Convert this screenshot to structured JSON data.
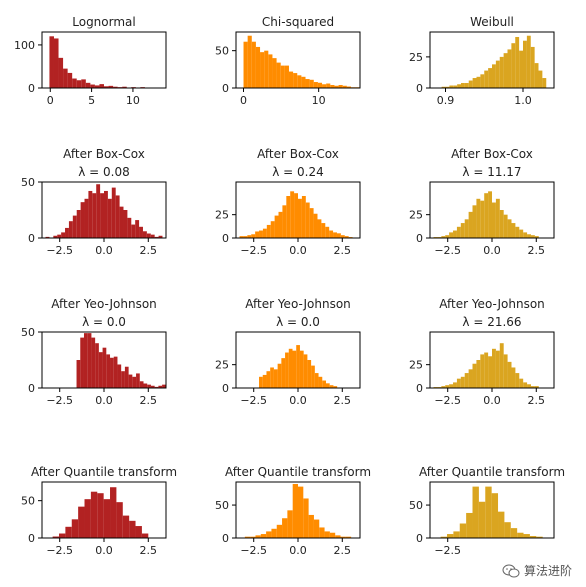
{
  "colors": {
    "lognormal": "#b22222",
    "chisq": "#ff8c00",
    "weibull": "#daa520"
  },
  "watermark": "算法进阶",
  "chart_data": [
    {
      "type": "histogram",
      "title": [
        "Lognormal"
      ],
      "color": "#b22222",
      "xlim": [
        -1,
        14
      ],
      "ylim": [
        0,
        130
      ],
      "xticks": [
        0,
        5,
        10
      ],
      "xtick_labels": [
        "0",
        "5",
        "10"
      ],
      "yticks": [
        0,
        100
      ],
      "ytick_labels": [
        "0",
        "100"
      ],
      "bin_start": -0.1,
      "bin_width": 0.55,
      "counts": [
        120,
        115,
        70,
        45,
        35,
        22,
        18,
        20,
        12,
        8,
        6,
        9,
        4,
        5,
        3,
        2,
        3,
        1,
        2,
        1,
        2,
        0,
        1,
        0,
        1
      ]
    },
    {
      "type": "histogram",
      "title": [
        "Chi-squared"
      ],
      "color": "#ff8c00",
      "xlim": [
        -1,
        15.5
      ],
      "ylim": [
        0,
        75
      ],
      "xticks": [
        0,
        10
      ],
      "xtick_labels": [
        "0",
        "10"
      ],
      "yticks": [
        0,
        50
      ],
      "ytick_labels": [
        "0",
        "50"
      ],
      "bin_start": 0,
      "bin_width": 0.55,
      "counts": [
        62,
        70,
        62,
        55,
        48,
        50,
        45,
        40,
        34,
        30,
        30,
        22,
        20,
        17,
        15,
        12,
        11,
        8,
        7,
        5,
        6,
        4,
        3,
        4,
        3,
        2,
        1,
        1
      ]
    },
    {
      "type": "histogram",
      "title": [
        "Weibull"
      ],
      "color": "#daa520",
      "xlim": [
        0.88,
        1.04
      ],
      "ylim": [
        0,
        45
      ],
      "xticks": [
        0.9,
        1.0
      ],
      "xtick_labels": [
        "0.9",
        "1.0"
      ],
      "yticks": [
        0,
        25
      ],
      "ytick_labels": [
        "0",
        "25"
      ],
      "bin_start": 0.895,
      "bin_width": 0.005,
      "counts": [
        1,
        1,
        2,
        2,
        3,
        4,
        4,
        6,
        8,
        9,
        11,
        14,
        16,
        19,
        22,
        25,
        28,
        31,
        36,
        41,
        30,
        38,
        42,
        33,
        20,
        14,
        8
      ]
    },
    {
      "type": "histogram",
      "title": [
        "After Box-Cox",
        "λ = 0.08"
      ],
      "color": "#b22222",
      "xlim": [
        -3.5,
        3.5
      ],
      "ylim": [
        0,
        50
      ],
      "xticks": [
        -2.5,
        0,
        2.5
      ],
      "xtick_labels": [
        "−2.5",
        "0.0",
        "2.5"
      ],
      "yticks": [
        0,
        50
      ],
      "ytick_labels": [
        "0",
        "50"
      ],
      "bin_start": -3.3,
      "bin_width": 0.22,
      "counts": [
        1,
        0,
        2,
        3,
        5,
        9,
        15,
        20,
        25,
        32,
        35,
        42,
        40,
        48,
        40,
        42,
        35,
        45,
        38,
        28,
        25,
        18,
        12,
        16,
        10,
        6,
        4,
        3,
        1,
        2
      ]
    },
    {
      "type": "histogram",
      "title": [
        "After Box-Cox",
        "λ = 0.24"
      ],
      "color": "#ff8c00",
      "xlim": [
        -3.5,
        3.5
      ],
      "ylim": [
        0,
        60
      ],
      "xticks": [
        -2.5,
        0,
        2.5
      ],
      "xtick_labels": [
        "−2.5",
        "0.0",
        "2.5"
      ],
      "yticks": [
        0,
        25
      ],
      "ytick_labels": [
        "0",
        "25"
      ],
      "bin_start": -3.3,
      "bin_width": 0.22,
      "counts": [
        2,
        2,
        3,
        4,
        7,
        8,
        10,
        14,
        18,
        24,
        28,
        35,
        45,
        50,
        48,
        42,
        45,
        38,
        32,
        26,
        20,
        16,
        12,
        8,
        6,
        5,
        3,
        2,
        1
      ]
    },
    {
      "type": "histogram",
      "title": [
        "After Box-Cox",
        "λ = 11.17"
      ],
      "color": "#daa520",
      "xlim": [
        -3.5,
        3.5
      ],
      "ylim": [
        0,
        60
      ],
      "xticks": [
        -2.5,
        0,
        2.5
      ],
      "xtick_labels": [
        "−2.5",
        "0.0",
        "2.5"
      ],
      "yticks": [
        0,
        25
      ],
      "ytick_labels": [
        "0",
        "25"
      ],
      "bin_start": -3.3,
      "bin_width": 0.22,
      "counts": [
        1,
        1,
        2,
        3,
        6,
        8,
        12,
        16,
        20,
        28,
        35,
        42,
        40,
        48,
        50,
        38,
        42,
        30,
        25,
        20,
        16,
        12,
        9,
        6,
        4,
        3,
        2
      ]
    },
    {
      "type": "histogram",
      "title": [
        "After Yeo-Johnson",
        "λ = 0.0"
      ],
      "color": "#b22222",
      "xlim": [
        -3.5,
        3.5
      ],
      "ylim": [
        0,
        50
      ],
      "xticks": [
        -2.5,
        0,
        2.5
      ],
      "xtick_labels": [
        "−2.5",
        "0.0",
        "2.5"
      ],
      "yticks": [
        0,
        50
      ],
      "ytick_labels": [
        "0",
        "50"
      ],
      "bin_start": -1.55,
      "bin_width": 0.21,
      "counts": [
        25,
        45,
        49,
        49,
        45,
        40,
        32,
        36,
        30,
        27,
        28,
        21,
        15,
        19,
        12,
        10,
        13,
        6,
        4,
        3,
        2,
        1,
        2,
        3
      ]
    },
    {
      "type": "histogram",
      "title": [
        "After Yeo-Johnson",
        "λ = 0.0"
      ],
      "color": "#ff8c00",
      "xlim": [
        -3.5,
        3.5
      ],
      "ylim": [
        0,
        60
      ],
      "xticks": [
        -2.5,
        0,
        2.5
      ],
      "xtick_labels": [
        "−2.5",
        "0.0",
        "2.5"
      ],
      "yticks": [
        0,
        25
      ],
      "ytick_labels": [
        "0",
        "25"
      ],
      "bin_start": -2.2,
      "bin_width": 0.21,
      "counts": [
        12,
        14,
        18,
        22,
        20,
        26,
        32,
        38,
        42,
        40,
        46,
        40,
        36,
        30,
        24,
        16,
        12,
        8,
        5,
        3,
        2
      ]
    },
    {
      "type": "histogram",
      "title": [
        "After Yeo-Johnson",
        "λ = 21.66"
      ],
      "color": "#daa520",
      "xlim": [
        -3.5,
        3.5
      ],
      "ylim": [
        0,
        60
      ],
      "xticks": [
        -2.5,
        0,
        2.5
      ],
      "xtick_labels": [
        "−2.5",
        "0.0",
        "2.5"
      ],
      "yticks": [
        0,
        25
      ],
      "ytick_labels": [
        "0",
        "25"
      ],
      "bin_start": -3.3,
      "bin_width": 0.22,
      "counts": [
        1,
        1,
        2,
        3,
        4,
        6,
        10,
        12,
        16,
        20,
        26,
        30,
        36,
        38,
        34,
        42,
        40,
        48,
        36,
        28,
        22,
        16,
        10,
        6,
        4,
        2,
        2
      ]
    },
    {
      "type": "histogram",
      "title": [
        "After Quantile transform"
      ],
      "color": "#b22222",
      "xlim": [
        -3.5,
        3.5
      ],
      "ylim": [
        0,
        75
      ],
      "xticks": [
        -2.5,
        0,
        2.5
      ],
      "xtick_labels": [
        "−2.5",
        "0.0",
        "2.5"
      ],
      "yticks": [
        0,
        50
      ],
      "ytick_labels": [
        "0",
        "50"
      ],
      "bin_start": -2.9,
      "bin_width": 0.36,
      "counts": [
        2,
        6,
        15,
        25,
        42,
        52,
        62,
        60,
        52,
        68,
        48,
        30,
        23,
        16,
        6
      ]
    },
    {
      "type": "histogram",
      "title": [
        "After Quantile transform"
      ],
      "color": "#ff8c00",
      "xlim": [
        -3.5,
        3.5
      ],
      "ylim": [
        0,
        85
      ],
      "xticks": [
        -2.5,
        0,
        2.5
      ],
      "xtick_labels": [
        "−2.5",
        "0.0",
        "2.5"
      ],
      "yticks": [
        0,
        50
      ],
      "ytick_labels": [
        "0",
        "50"
      ],
      "bin_start": -3.0,
      "bin_width": 0.3,
      "counts": [
        2,
        2,
        4,
        6,
        10,
        14,
        20,
        30,
        42,
        82,
        78,
        60,
        35,
        28,
        16,
        10,
        8,
        4,
        2,
        2
      ]
    },
    {
      "type": "histogram",
      "title": [
        "After Quantile transform"
      ],
      "color": "#daa520",
      "xlim": [
        -3.5,
        3.5
      ],
      "ylim": [
        0,
        85
      ],
      "xticks": [
        -2.5
      ],
      "xtick_labels": [
        "−2.5"
      ],
      "yticks": [
        0,
        50
      ],
      "ytick_labels": [
        "0",
        "50"
      ],
      "bin_start": -2.9,
      "bin_width": 0.36,
      "counts": [
        2,
        6,
        10,
        22,
        38,
        78,
        55,
        78,
        68,
        40,
        24,
        15,
        8,
        6,
        3,
        2
      ]
    }
  ]
}
